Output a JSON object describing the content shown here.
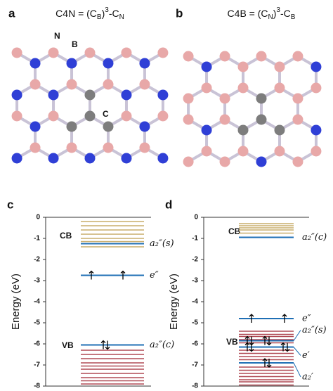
{
  "panels": [
    {
      "label": "a",
      "title": [
        {
          "t": "C4N = (C"
        },
        {
          "sub": "B"
        },
        {
          "t": ")"
        },
        {
          "sup": "3"
        },
        {
          "t": "-C"
        },
        {
          "sub": "N"
        }
      ],
      "atoms": [
        "N",
        "B",
        "C"
      ]
    },
    {
      "label": "b",
      "title": [
        {
          "t": "C4B = (C"
        },
        {
          "sub": "N"
        },
        {
          "t": ")"
        },
        {
          "sup": "3"
        },
        {
          "t": "-C"
        },
        {
          "sub": "B"
        }
      ]
    }
  ],
  "chart_data": [
    {
      "type": "levels",
      "label": "c",
      "ylabel": "Energy (eV)",
      "ylim": [
        -8,
        0
      ],
      "yticks": [
        0,
        -1,
        -2,
        -3,
        -4,
        -5,
        -6,
        -7,
        -8
      ],
      "bands": [
        "CB",
        "VB"
      ],
      "levels": [
        {
          "color": "#c9ad6b",
          "values": [
            -0.2,
            -0.4,
            -0.6,
            -0.8,
            -1.0,
            -1.15,
            -1.4
          ]
        },
        {
          "color": "#b04a55",
          "values": [
            -6.3,
            -6.5,
            -6.7,
            -6.9,
            -7.05,
            -7.2,
            -7.4,
            -7.6,
            -7.75,
            -7.9
          ]
        }
      ],
      "state_color": "#1f6fb5",
      "states": [
        {
          "label": "a₂″(s)",
          "value": -1.25
        },
        {
          "label": "e″",
          "value": -2.75
        },
        {
          "label": "a₂″(c)",
          "value": -6.05
        }
      ]
    },
    {
      "type": "levels",
      "label": "d",
      "ylabel": "Energy (eV)",
      "ylim": [
        -8,
        0
      ],
      "yticks": [
        0,
        -1,
        -2,
        -3,
        -4,
        -5,
        -6,
        -7,
        -8
      ],
      "bands": [
        "CB",
        "VB"
      ],
      "levels": [
        {
          "color": "#c9ad6b",
          "values": [
            -0.3,
            -0.4,
            -0.5,
            -0.6,
            -0.75
          ]
        },
        {
          "color": "#b04a55",
          "values": [
            -5.4,
            -5.55,
            -5.65,
            -5.8,
            -5.95,
            -6.3,
            -6.45,
            -6.6,
            -6.75,
            -6.9,
            -7.1,
            -7.25,
            -7.4,
            -7.55,
            -7.7,
            -7.8,
            -7.95
          ]
        }
      ],
      "state_color": "#1f6fb5",
      "states": [
        {
          "label": "a₂″(c)",
          "value": -0.95
        },
        {
          "label": "e″",
          "value": -4.8
        },
        {
          "label": "a₂″(s)",
          "value": -5.85
        },
        {
          "label": "e′",
          "value": -6.15
        },
        {
          "label": "a₂′",
          "value": -6.9
        }
      ]
    }
  ]
}
